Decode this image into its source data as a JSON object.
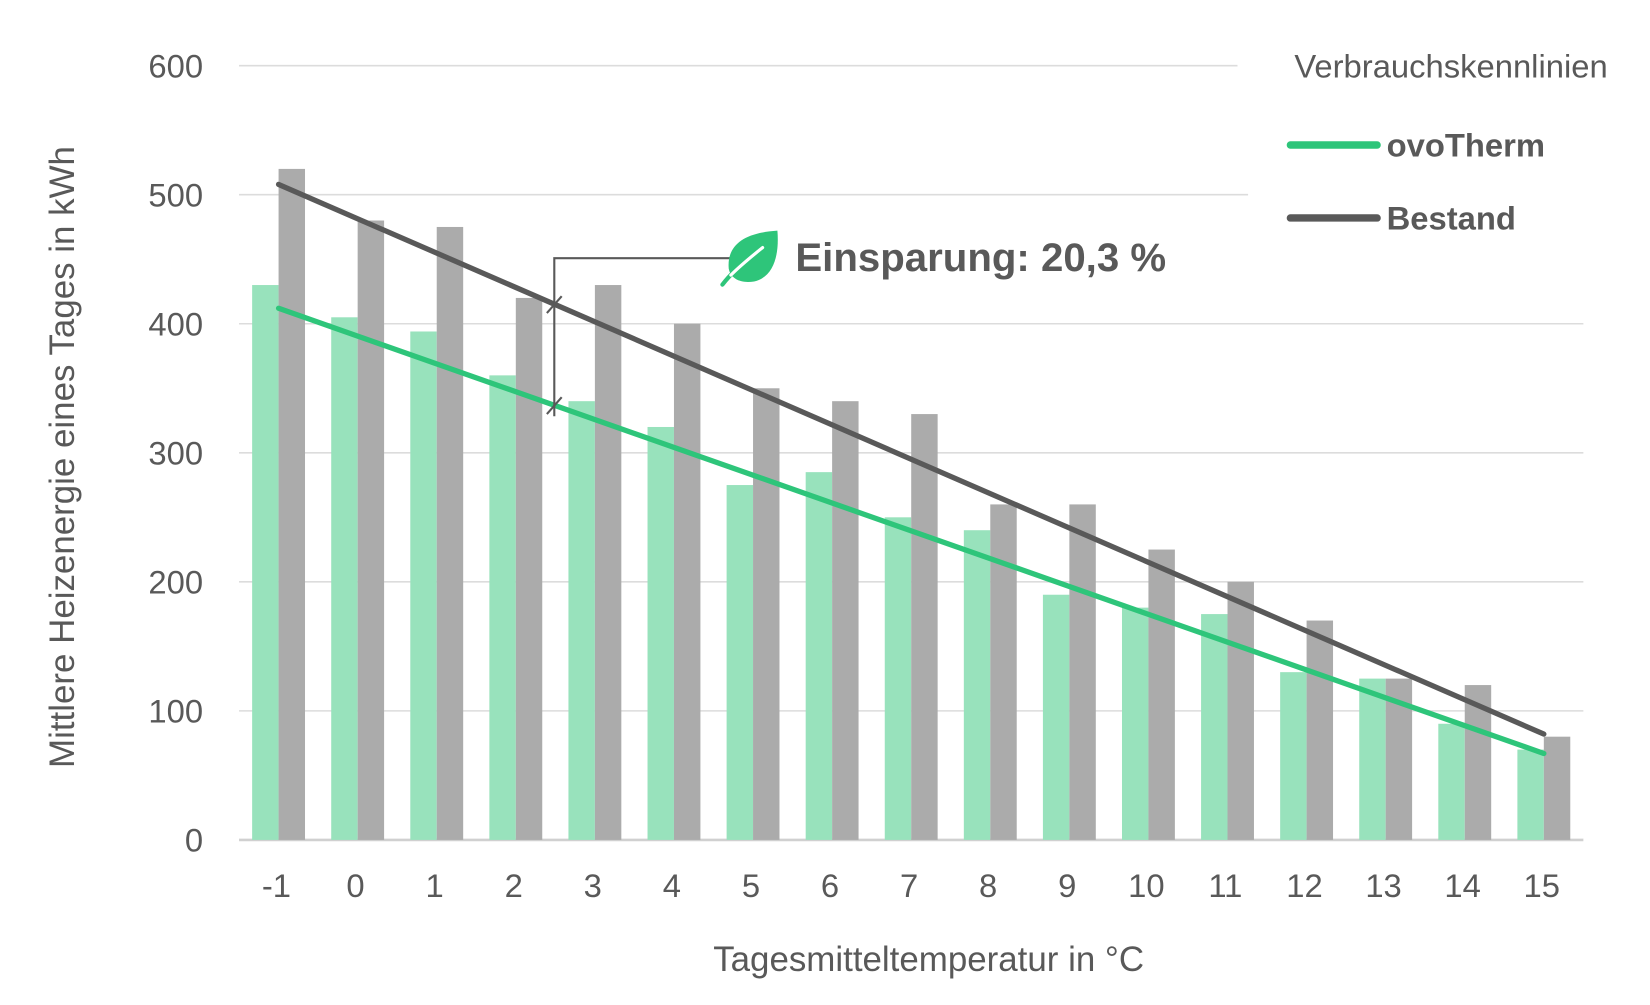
{
  "chart_data": {
    "type": "bar",
    "title": "",
    "xlabel": "Tagesmitteltemperatur in °C",
    "ylabel": "Mittlere Heizenergie eines Tages in kWh",
    "ylim": [
      0,
      600
    ],
    "yticks": [
      "0",
      "100",
      "200",
      "300",
      "400",
      "500",
      "600"
    ],
    "grid": true,
    "categories": [
      "-1",
      "0",
      "1",
      "2",
      "3",
      "4",
      "5",
      "6",
      "7",
      "8",
      "9",
      "10",
      "11",
      "12",
      "13",
      "14",
      "15"
    ],
    "series": [
      {
        "values": [
          430,
          405,
          394,
          360,
          340,
          320,
          275,
          285,
          250,
          240,
          190,
          180,
          175,
          130,
          125,
          90,
          70
        ],
        "color": "#98e2bc"
      },
      {
        "values": [
          520,
          480,
          475,
          420,
          430,
          400,
          350,
          340,
          330,
          260,
          260,
          225,
          200,
          170,
          125,
          120,
          80
        ],
        "color": "#ababab"
      }
    ],
    "trendlines": [
      {
        "name": "ovoTherm",
        "color": "#2ec57a",
        "from": [
          -1,
          412
        ],
        "to": [
          15,
          67
        ]
      },
      {
        "name": "Bestand",
        "color": "#595959",
        "from": [
          -1,
          508
        ],
        "to": [
          15,
          82
        ]
      }
    ],
    "legend": {
      "title": "Verbrauchskennlinien",
      "position": "top-right"
    },
    "annotation": {
      "text": "Einsparung: 20,3 %",
      "icon": "leaf-icon",
      "icon_color": "#2ec57a",
      "at_x": 2.5
    }
  }
}
